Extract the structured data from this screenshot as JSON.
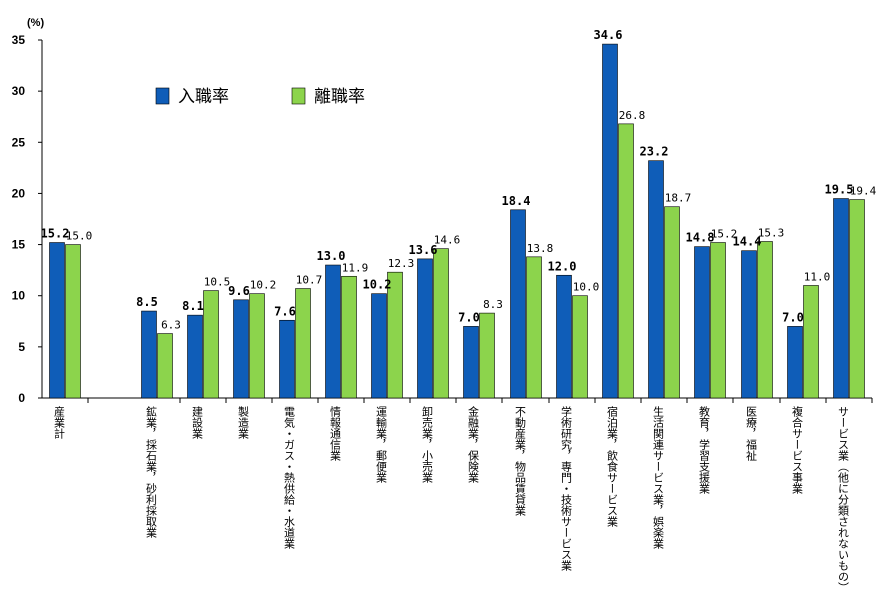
{
  "chart_data": {
    "type": "bar",
    "unit_label": "(%)",
    "ylim": [
      0,
      35
    ],
    "yticks": [
      0,
      5,
      10,
      15,
      20,
      25,
      30,
      35
    ],
    "legend": {
      "position": "top-left",
      "entries": [
        "入職率",
        "離職率"
      ]
    },
    "categories": [
      "産業計",
      "鉱業，採石業，砂利採取業",
      "建設業",
      "製造業",
      "電気・ガス・熱供給・水道業",
      "情報通信業",
      "運輸業，郵便業",
      "卸売業，小売業",
      "金融業，保険業",
      "不動産業，物品賃貸業",
      "学術研究，専門・技術サービス業",
      "宿泊業，飲食サービス業",
      "生活関連サービス業，娯楽業",
      "教育，学習支援業",
      "医療，福祉",
      "複合サービス事業",
      "サービス業（他に分類されないもの）"
    ],
    "series": [
      {
        "name": "入職率",
        "color": "#0f5db8",
        "values": [
          15.2,
          8.5,
          8.1,
          9.6,
          7.6,
          13.0,
          10.2,
          13.6,
          7.0,
          18.4,
          12.0,
          34.6,
          23.2,
          14.8,
          14.4,
          7.0,
          19.5
        ],
        "labels": [
          "15.2",
          "8.5",
          "8.1",
          "9.6",
          "7.6",
          "13.0",
          "10.2",
          "13.6",
          "7.0",
          "18.4",
          "12.0",
          "34.6",
          "23.2",
          "14.8",
          "14.4",
          "7.0",
          "19.5"
        ]
      },
      {
        "name": "離職率",
        "color": "#8cd44c",
        "values": [
          15.0,
          6.3,
          10.5,
          10.2,
          10.7,
          11.9,
          12.3,
          14.6,
          8.3,
          13.8,
          10.0,
          26.8,
          18.7,
          15.2,
          15.3,
          11.0,
          19.4
        ],
        "labels": [
          "15.0",
          "6.3",
          "10.5",
          "10.2",
          "10.7",
          "11.9",
          "12.3",
          "14.6",
          "8.3",
          "13.8",
          "10.0",
          "26.8",
          "18.7",
          "15.2",
          "15.3",
          "11.0",
          "19.4"
        ]
      }
    ]
  }
}
